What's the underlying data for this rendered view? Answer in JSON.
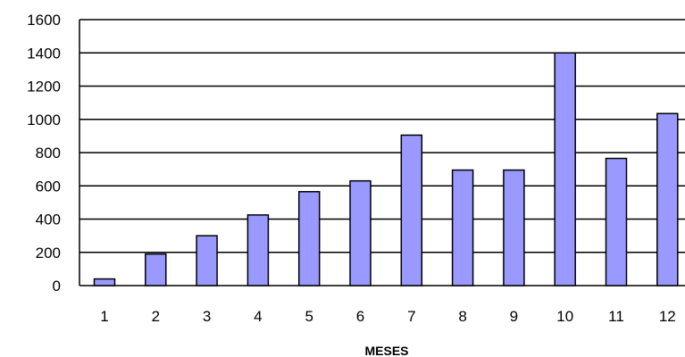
{
  "chart_data": {
    "type": "bar",
    "title": "",
    "xlabel": "MESES",
    "ylabel": "",
    "categories": [
      "1",
      "2",
      "3",
      "4",
      "5",
      "6",
      "7",
      "8",
      "9",
      "10",
      "11",
      "12"
    ],
    "values": [
      40,
      190,
      300,
      425,
      565,
      630,
      905,
      695,
      695,
      1400,
      765,
      1035
    ],
    "ylim": [
      0,
      1600
    ],
    "yticks": [
      "0",
      "200",
      "400",
      "600",
      "800",
      "1000",
      "1200",
      "1400",
      "1600"
    ],
    "grid": true,
    "legend": "none",
    "colors": {
      "bar_fill": "#9999ff",
      "bar_stroke": "#000000",
      "gridline": "#000000"
    }
  }
}
